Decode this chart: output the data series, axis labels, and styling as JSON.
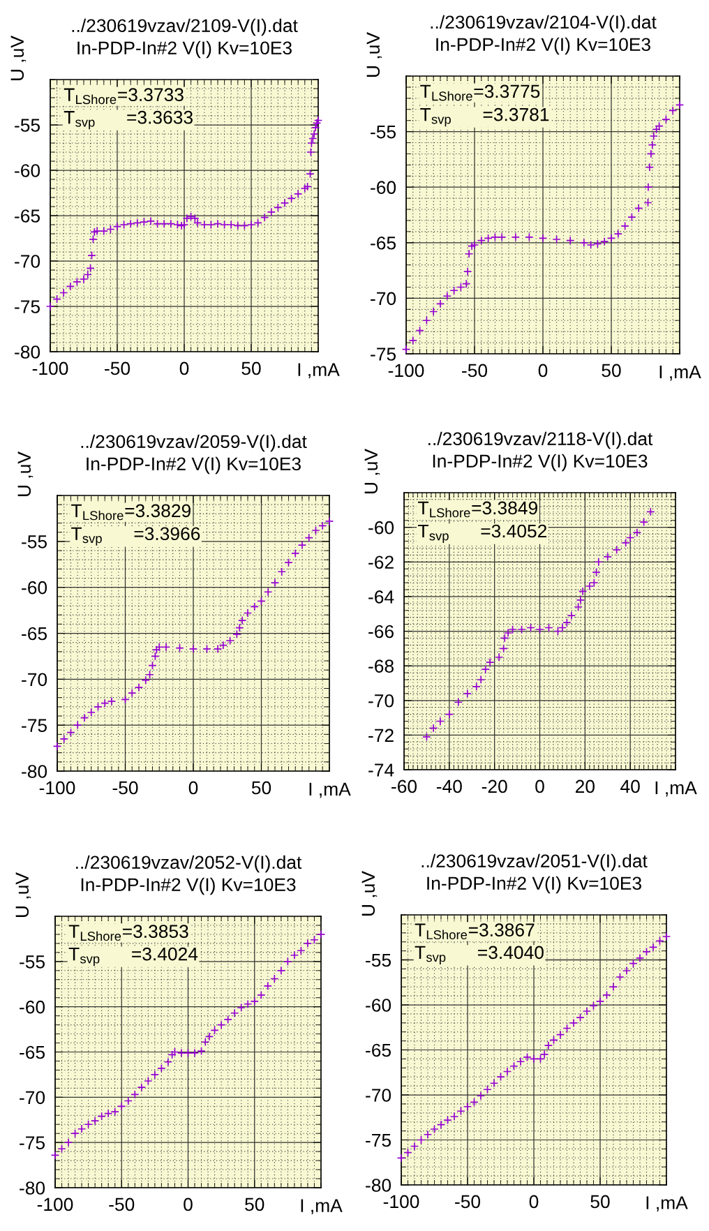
{
  "chart_data": [
    {
      "type": "scatter",
      "title": "../230619vzav/2109-V(I).dat",
      "subtitle": "In-PDP-In#2 V(I) Kv=10E3",
      "xlabel": "I ,mA",
      "ylabel": "U ,uV",
      "marker": "cross",
      "grid": true,
      "annotations": [
        "T$_{LShore}$=3.3733",
        "T$_{svp}$      =3.3633"
      ],
      "xlim": [
        -100,
        100
      ],
      "xticks": [
        -100,
        -50,
        0,
        50
      ],
      "ylim": [
        -80,
        -50
      ],
      "yticks": [
        -80,
        -75,
        -70,
        -65,
        -60,
        -55
      ],
      "series": [
        {
          "color": "#9400d3",
          "x": [
            -100,
            -95,
            -90,
            -85,
            -80,
            -75,
            -72,
            -70,
            -69,
            -68,
            -67,
            -65,
            -60,
            -55,
            -50,
            -45,
            -40,
            -35,
            -30,
            -25,
            -20,
            -15,
            -10,
            -5,
            -2,
            0,
            2,
            5,
            8,
            10,
            15,
            20,
            25,
            30,
            35,
            40,
            45,
            50,
            55,
            60,
            65,
            70,
            75,
            80,
            85,
            90,
            92,
            94,
            94.5,
            95,
            96,
            97,
            98,
            99,
            100
          ],
          "values": [
            -75,
            -74.2,
            -73.5,
            -72.8,
            -72.3,
            -72.0,
            -71.5,
            -70.8,
            -69.4,
            -67.6,
            -66.8,
            -66.7,
            -66.7,
            -66.5,
            -66.2,
            -66.0,
            -65.9,
            -65.8,
            -65.7,
            -65.6,
            -65.9,
            -65.9,
            -65.9,
            -66.0,
            -66.1,
            -66.0,
            -65.3,
            -65.1,
            -65.3,
            -65.8,
            -66.0,
            -66.0,
            -65.9,
            -66.0,
            -66.0,
            -66.1,
            -66.1,
            -66.0,
            -65.8,
            -65.2,
            -64.6,
            -64.1,
            -63.6,
            -63.1,
            -62.6,
            -62.0,
            -61.8,
            -60.4,
            -58.0,
            -57.0,
            -56.5,
            -56.0,
            -55.3,
            -54.8,
            -54.5
          ]
        }
      ]
    },
    {
      "type": "scatter",
      "title": "../230619vzav/2104-V(I).dat",
      "subtitle": "In-PDP-In#2 V(I) Kv=10E3",
      "xlabel": "I ,mA",
      "ylabel": "U ,uV",
      "marker": "cross",
      "grid": true,
      "annotations": [
        "T$_{LShore}$=3.3775",
        "T$_{svp}$      =3.3781"
      ],
      "xlim": [
        -100,
        100
      ],
      "xticks": [
        -100,
        -50,
        0,
        50
      ],
      "ylim": [
        -75,
        -50
      ],
      "yticks": [
        -75,
        -70,
        -65,
        -60,
        -55
      ],
      "series": [
        {
          "color": "#9400d3",
          "x": [
            -100,
            -95,
            -90,
            -85,
            -80,
            -75,
            -70,
            -65,
            -60,
            -56,
            -55,
            -54,
            -52,
            -50,
            -45,
            -40,
            -35,
            -30,
            -20,
            -10,
            0,
            10,
            20,
            30,
            35,
            40,
            45,
            50,
            55,
            60,
            65,
            70,
            76.8,
            77,
            78,
            79,
            80,
            81,
            83,
            85,
            90,
            95,
            100
          ],
          "values": [
            -74.6,
            -73.8,
            -72.9,
            -72.0,
            -71.2,
            -70.5,
            -69.8,
            -69.3,
            -69.0,
            -68.7,
            -67.6,
            -66.0,
            -65.3,
            -65.2,
            -64.8,
            -64.6,
            -64.5,
            -64.5,
            -64.5,
            -64.5,
            -64.6,
            -64.7,
            -64.8,
            -65.0,
            -65.2,
            -65.1,
            -64.9,
            -64.6,
            -64.2,
            -63.5,
            -62.7,
            -61.9,
            -61.4,
            -60.0,
            -58.2,
            -57.0,
            -56.2,
            -55.4,
            -54.8,
            -54.5,
            -53.9,
            -53.1,
            -52.6
          ]
        }
      ]
    },
    {
      "type": "scatter",
      "title": "../230619vzav/2059-V(I).dat",
      "subtitle": "In-PDP-In#2 V(I) Kv=10E3",
      "xlabel": "I ,mA",
      "ylabel": "U ,uV",
      "marker": "cross",
      "grid": true,
      "annotations": [
        "T$_{LShore}$=3.3829",
        "T$_{svp}$      =3.3966"
      ],
      "xlim": [
        -100,
        100
      ],
      "xticks": [
        -100,
        -50,
        0,
        50
      ],
      "ylim": [
        -80,
        -50
      ],
      "yticks": [
        -80,
        -75,
        -70,
        -65,
        -60,
        -55
      ],
      "series": [
        {
          "color": "#9400d3",
          "x": [
            -100,
            -95,
            -90,
            -85,
            -80,
            -75,
            -70,
            -65,
            -60,
            -50,
            -45,
            -40,
            -35,
            -32,
            -30,
            -28,
            -27,
            -25,
            -20,
            -10,
            0,
            10,
            18,
            22,
            27,
            32,
            34,
            36,
            40,
            45,
            50,
            55,
            60,
            65,
            70,
            75,
            80,
            85,
            90,
            95,
            100
          ],
          "values": [
            -77.3,
            -76.5,
            -75.8,
            -75.0,
            -74.2,
            -73.6,
            -73.0,
            -72.6,
            -72.4,
            -72.2,
            -71.5,
            -70.9,
            -70.1,
            -69.5,
            -68.5,
            -67.5,
            -66.8,
            -66.5,
            -66.5,
            -66.6,
            -66.7,
            -66.7,
            -66.7,
            -66.3,
            -65.8,
            -65.1,
            -64.4,
            -63.6,
            -62.8,
            -62.1,
            -61.5,
            -60.5,
            -59.5,
            -58.3,
            -57.3,
            -56.3,
            -55.4,
            -54.6,
            -53.8,
            -53.3,
            -52.8
          ]
        }
      ]
    },
    {
      "type": "scatter",
      "title": "../230619vzav/2118-V(I).dat",
      "subtitle": "In-PDP-In#2 V(I) Kv=10E3",
      "xlabel": "I ,mA",
      "ylabel": "U ,uV",
      "marker": "cross",
      "grid": true,
      "annotations": [
        "T$_{LShore}$=3.3849",
        "T$_{svp}$      =3.4052"
      ],
      "xlim": [
        -60,
        60
      ],
      "xticks": [
        -60,
        -40,
        -20,
        0,
        20,
        40
      ],
      "ylim": [
        -74,
        -58
      ],
      "yticks": [
        -74,
        -72,
        -70,
        -68,
        -66,
        -64,
        -62,
        -60
      ],
      "series": [
        {
          "color": "#9400d3",
          "x": [
            -50,
            -47,
            -44,
            -40,
            -36,
            -32,
            -28,
            -26,
            -24,
            -22,
            -18,
            -16,
            -15.5,
            -14,
            -12,
            -8,
            -4,
            0,
            4,
            8,
            10,
            12,
            14,
            17,
            18,
            19,
            22,
            24,
            25,
            26,
            30,
            34,
            38,
            40,
            43,
            46,
            49
          ],
          "values": [
            -72.1,
            -71.6,
            -71.2,
            -70.8,
            -70.1,
            -69.6,
            -69.2,
            -68.8,
            -68.2,
            -67.8,
            -67.5,
            -67.0,
            -66.4,
            -66.1,
            -65.9,
            -65.9,
            -65.8,
            -65.9,
            -65.8,
            -66.0,
            -65.8,
            -65.5,
            -65.1,
            -64.6,
            -64.2,
            -63.7,
            -63.4,
            -63.2,
            -62.6,
            -62.0,
            -61.7,
            -61.3,
            -60.9,
            -60.6,
            -60.3,
            -59.7,
            -59.1
          ]
        }
      ]
    },
    {
      "type": "scatter",
      "title": "../230619vzav/2052-V(I).dat",
      "subtitle": "In-PDP-In#2 V(I) Kv=10E3",
      "xlabel": "I ,mA",
      "ylabel": "U ,uV",
      "marker": "cross",
      "grid": true,
      "annotations": [
        "T$_{LShore}$=3.3853",
        "T$_{svp}$      =3.4024"
      ],
      "xlim": [
        -100,
        100
      ],
      "xticks": [
        -100,
        -50,
        0,
        50
      ],
      "ylim": [
        -80,
        -50
      ],
      "yticks": [
        -80,
        -75,
        -70,
        -65,
        -60,
        -55
      ],
      "series": [
        {
          "color": "#9400d3",
          "x": [
            -100,
            -95,
            -90,
            -85,
            -80,
            -75,
            -70,
            -65,
            -60,
            -55,
            -50,
            -45,
            -40,
            -35,
            -30,
            -25,
            -20,
            -15,
            -12,
            -10,
            -5,
            0,
            5,
            10,
            13,
            16,
            20,
            25,
            30,
            35,
            40,
            45,
            50,
            55,
            60,
            65,
            70,
            75,
            80,
            85,
            90,
            95,
            100
          ],
          "values": [
            -76.4,
            -75.7,
            -75.0,
            -74.0,
            -73.5,
            -73.0,
            -72.6,
            -72.1,
            -71.8,
            -71.6,
            -71.0,
            -70.4,
            -69.7,
            -68.9,
            -68.2,
            -67.5,
            -66.8,
            -66.1,
            -65.3,
            -65.0,
            -65.1,
            -65.1,
            -65.1,
            -64.9,
            -63.9,
            -63.3,
            -62.6,
            -62.0,
            -61.4,
            -60.7,
            -60.1,
            -59.7,
            -59.4,
            -58.7,
            -57.7,
            -56.9,
            -56.0,
            -55.0,
            -54.3,
            -53.8,
            -53.0,
            -52.6,
            -52.0
          ]
        }
      ]
    },
    {
      "type": "scatter",
      "title": "../230619vzav/2051-V(I).dat",
      "subtitle": "In-PDP-In#2 V(I) Kv=10E3",
      "xlabel": "I ,mA",
      "ylabel": "U ,uV",
      "marker": "cross",
      "grid": true,
      "annotations": [
        "T$_{LShore}$=3.3867",
        "T$_{svp}$      =3.4040"
      ],
      "xlim": [
        -100,
        100
      ],
      "xticks": [
        -100,
        -50,
        0,
        50
      ],
      "ylim": [
        -80,
        -50
      ],
      "yticks": [
        -80,
        -75,
        -70,
        -65,
        -60,
        -55
      ],
      "series": [
        {
          "color": "#9400d3",
          "x": [
            -100,
            -95,
            -90,
            -85,
            -80,
            -75,
            -70,
            -65,
            -60,
            -55,
            -50,
            -45,
            -40,
            -35,
            -30,
            -25,
            -20,
            -15,
            -10,
            -5,
            0,
            5,
            8,
            11,
            15,
            20,
            25,
            30,
            35,
            40,
            45,
            50,
            55,
            60,
            65,
            70,
            75,
            80,
            85,
            90,
            95,
            100
          ],
          "values": [
            -77.0,
            -76.4,
            -75.7,
            -75.0,
            -74.4,
            -73.8,
            -73.3,
            -72.8,
            -72.4,
            -71.8,
            -71.3,
            -70.8,
            -70.1,
            -69.4,
            -68.7,
            -68.0,
            -67.4,
            -66.8,
            -66.3,
            -65.8,
            -66.0,
            -66.0,
            -65.5,
            -64.5,
            -63.9,
            -63.3,
            -62.6,
            -62.0,
            -61.4,
            -60.7,
            -60.1,
            -59.6,
            -58.9,
            -58.0,
            -56.9,
            -56.2,
            -55.4,
            -54.8,
            -54.1,
            -53.6,
            -52.9,
            -52.4
          ]
        }
      ]
    }
  ]
}
